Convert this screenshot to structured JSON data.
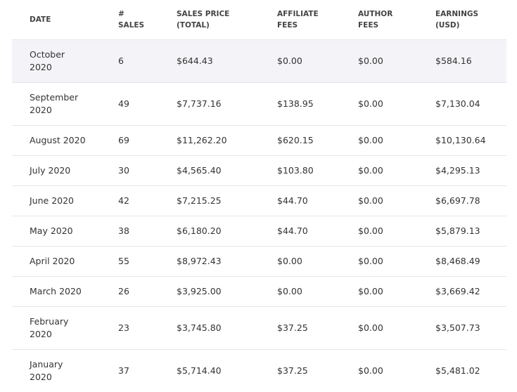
{
  "table": {
    "headers": [
      "DATE",
      "# SALES",
      "SALES PRICE (TOTAL)",
      "AFFILIATE FEES",
      "AUTHOR FEES",
      "EARNINGS (USD)"
    ],
    "rows": [
      [
        "October 2020",
        "6",
        "$644.43",
        "$0.00",
        "$0.00",
        "$584.16"
      ],
      [
        "September 2020",
        "49",
        "$7,737.16",
        "$138.95",
        "$0.00",
        "$7,130.04"
      ],
      [
        "August 2020",
        "69",
        "$11,262.20",
        "$620.15",
        "$0.00",
        "$10,130.64"
      ],
      [
        "July 2020",
        "30",
        "$4,565.40",
        "$103.80",
        "$0.00",
        "$4,295.13"
      ],
      [
        "June 2020",
        "42",
        "$7,215.25",
        "$44.70",
        "$0.00",
        "$6,697.78"
      ],
      [
        "May 2020",
        "38",
        "$6,180.20",
        "$44.70",
        "$0.00",
        "$5,879.13"
      ],
      [
        "April 2020",
        "55",
        "$8,972.43",
        "$0.00",
        "$0.00",
        "$8,468.49"
      ],
      [
        "March 2020",
        "26",
        "$3,925.00",
        "$0.00",
        "$0.00",
        "$3,669.42"
      ],
      [
        "February 2020",
        "23",
        "$3,745.80",
        "$37.25",
        "$0.00",
        "$3,507.73"
      ],
      [
        "January 2020",
        "37",
        "$5,714.40",
        "$37.25",
        "$0.00",
        "$5,481.02"
      ]
    ]
  }
}
